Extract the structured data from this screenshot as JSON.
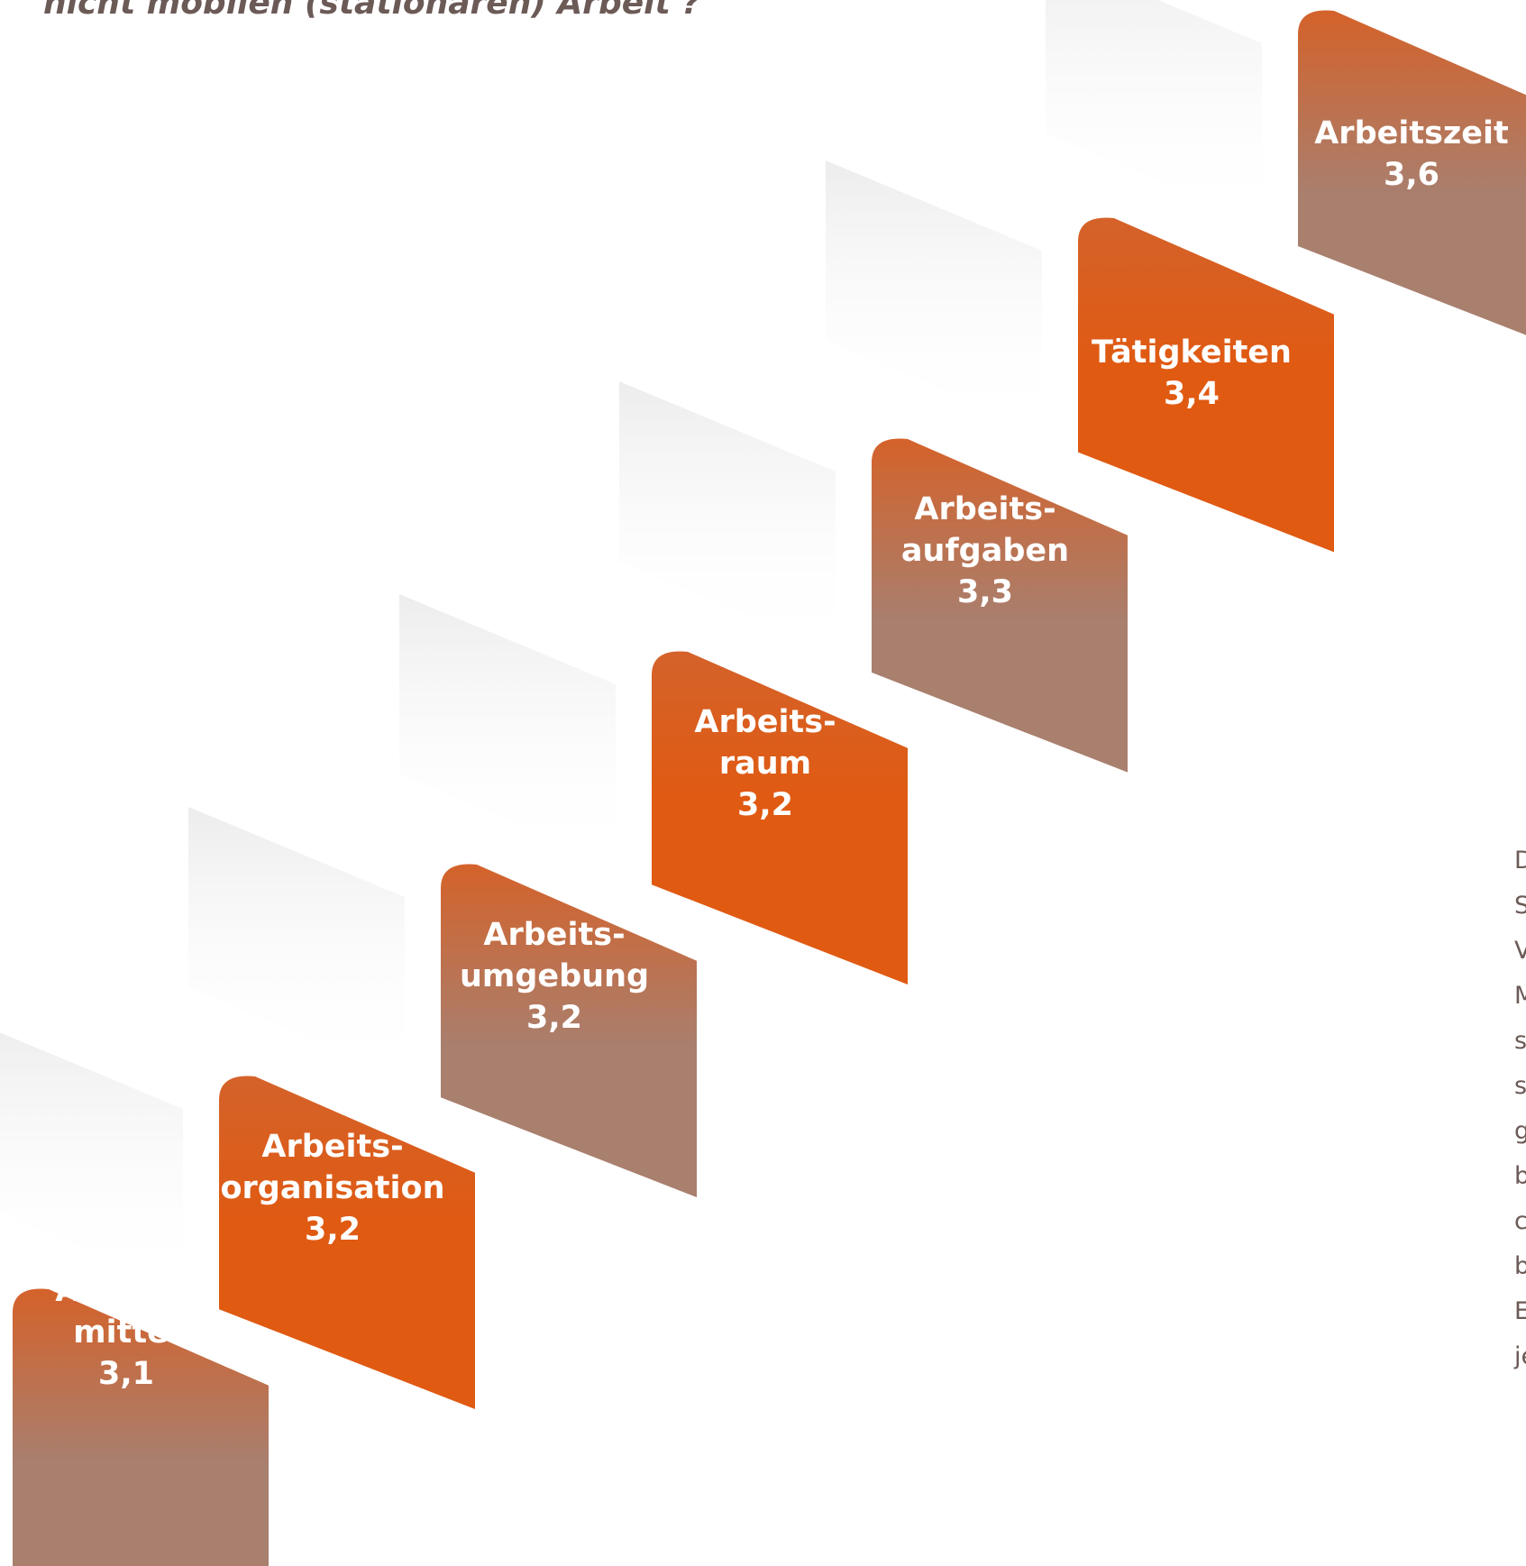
{
  "title": "nicht mobilen (stationären) Arbeit ?”",
  "chart_data": {
    "type": "bar",
    "categories": [
      "Arbeits-\nmittel",
      "Arbeits-\norganisation",
      "Arbeits-\numgebung",
      "Arbeits-\nraum",
      "Arbeits-\naufgaben",
      "Tätigkeiten",
      "Arbeitszeit"
    ],
    "values": [
      "3,1",
      "3,2",
      "3,2",
      "3,2",
      "3,3",
      "3,4",
      "3,6"
    ],
    "colors": {
      "orange": "#e05a12",
      "brown": "#a97f6e",
      "ribbon_top": "#d4622a",
      "fold": "#6b5a56",
      "label": "#ffffff"
    }
  },
  "side_text": [
    "D",
    "S",
    "V",
    "M",
    "s",
    "s",
    "g",
    "b",
    "c",
    "b",
    "E",
    "je"
  ]
}
